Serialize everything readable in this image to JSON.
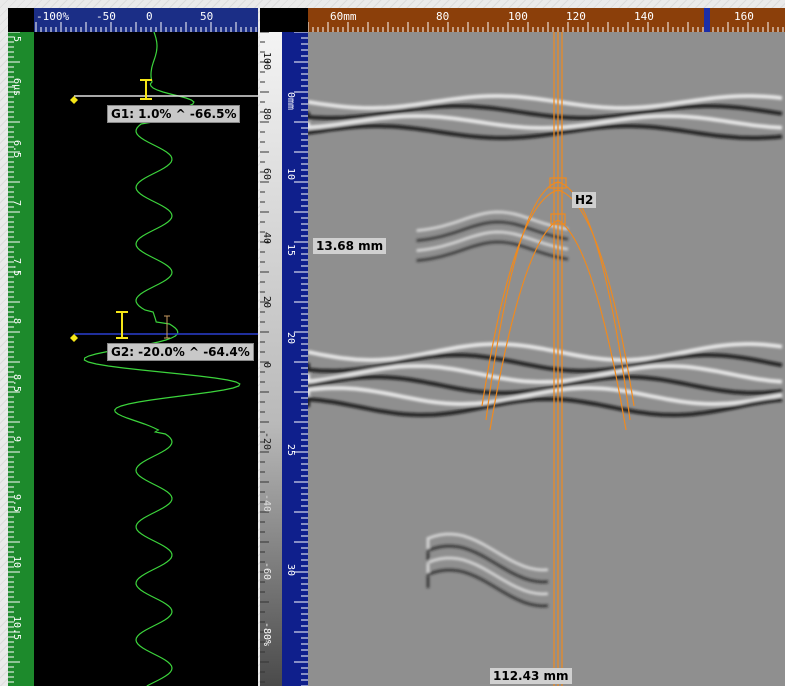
{
  "ascan": {
    "top_ruler": {
      "labels": [
        "-100%",
        "-50",
        "0",
        "50"
      ]
    },
    "left_ruler": {
      "labels": [
        "5",
        "6μs",
        "6.5",
        "7",
        "7.5",
        "8",
        "8.5",
        "9",
        "9.5",
        "10",
        "10.5"
      ]
    },
    "gates": [
      {
        "label": "G1: 1.0% ^ -66.5%"
      },
      {
        "label": "G2: -20.0% ^ -64.4%"
      }
    ]
  },
  "bscan": {
    "top_ruler": {
      "labels": [
        "60mm",
        "80",
        "100",
        "120",
        "140",
        "160"
      ]
    },
    "amp_ruler": {
      "labels": [
        "100",
        "80",
        "60",
        "40",
        "20",
        "0",
        "-20",
        "-40",
        "-60",
        "-80%"
      ]
    },
    "depth_ruler": {
      "labels": [
        "0mm",
        "10",
        "15",
        "20",
        "25",
        "30"
      ]
    },
    "hyperbola_label": "H2",
    "depth_measure": "13.68 mm",
    "position_measure": "112.43 mm"
  },
  "colors": {
    "ascan_waveform": "#3cd43c",
    "hyperbola": "#f08a1e",
    "gate_marker": "#f5e617"
  }
}
